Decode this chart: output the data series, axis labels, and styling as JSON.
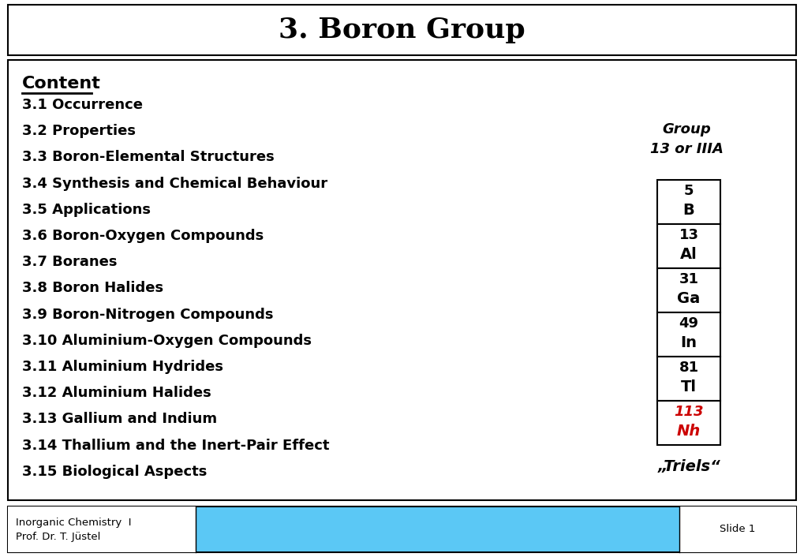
{
  "title": "3. Boron Group",
  "title_fontsize": 26,
  "content_label": "Content",
  "content_items": [
    "3.1 Occurrence",
    "3.2 Properties",
    "3.3 Boron-Elemental Structures",
    "3.4 Synthesis and Chemical Behaviour",
    "3.5 Applications",
    "3.6 Boron-Oxygen Compounds",
    "3.7 Boranes",
    "3.8 Boron Halides",
    "3.9 Boron-Nitrogen Compounds",
    "3.10 Aluminium-Oxygen Compounds",
    "3.11 Aluminium Hydrides",
    "3.12 Aluminium Halides",
    "3.13 Gallium and Indium",
    "3.14 Thallium and the Inert-Pair Effect",
    "3.15 Biological Aspects"
  ],
  "group_label": "Group\n13 or IIIA",
  "elements": [
    {
      "number": "5",
      "symbol": "B",
      "color": "#000000"
    },
    {
      "number": "13",
      "symbol": "Al",
      "color": "#000000"
    },
    {
      "number": "31",
      "symbol": "Ga",
      "color": "#000000"
    },
    {
      "number": "49",
      "symbol": "In",
      "color": "#000000"
    },
    {
      "number": "81",
      "symbol": "Tl",
      "color": "#000000"
    },
    {
      "number": "113",
      "symbol": "Nh",
      "color": "#cc0000"
    }
  ],
  "triels_label": "„Triels“",
  "footer_left1": "Inorganic Chemistry  I",
  "footer_left2": "Prof. Dr. T. Jüstel",
  "footer_right": "Slide 1",
  "footer_bg": "#5bc8f5",
  "footer_text_bg": "#ffffff",
  "bg_color": "#ffffff",
  "border_color": "#000000"
}
